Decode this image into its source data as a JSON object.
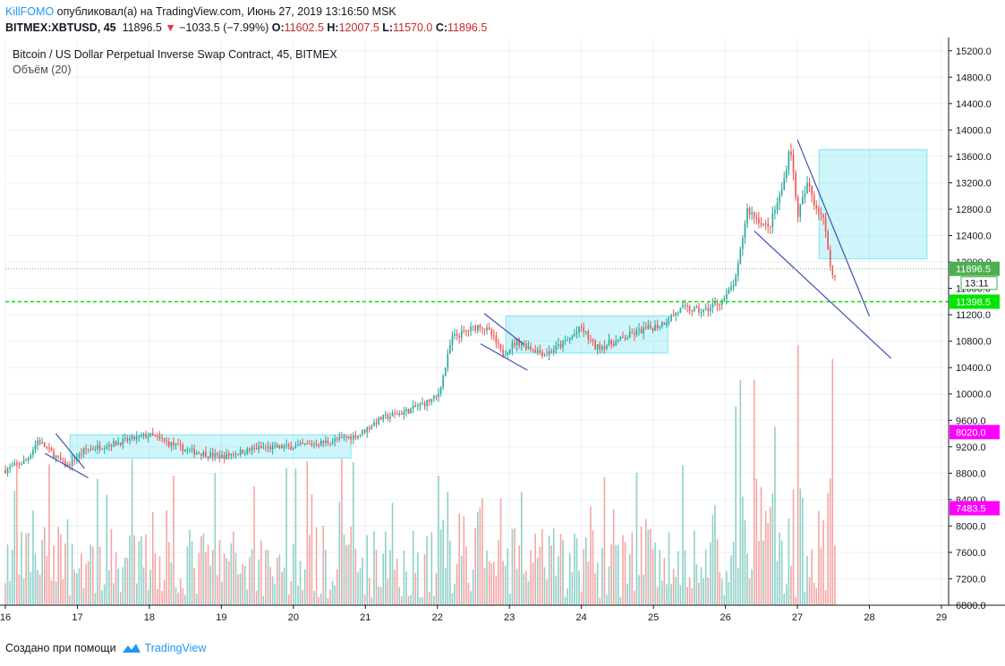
{
  "header": {
    "author": "KillFOMO",
    "published": "опубликовал(а) на TradingView.com, Июнь 27, 2019 13:16:50 MSK",
    "symbol": "BITMEX:XBTUSD, 45",
    "price": "11896.5",
    "change_arrow": "▼",
    "change": "−1033.5 (−7.99%)",
    "o_label": "O:",
    "o": "11602.5",
    "h_label": "H:",
    "h": "12007.5",
    "l_label": "L:",
    "l": "11570.0",
    "c_label": "C:",
    "c": "11896.5"
  },
  "overlay": {
    "title": "Bitcoin / US Dollar Perpetual Inverse Swap Contract, 45, BITMEX",
    "volume_label": "Объём (20)"
  },
  "footer": {
    "created_with": "Создано при помощи",
    "brand": "TradingView",
    "logo_icon": "tradingview-logo-icon"
  },
  "colors": {
    "up": "#26a69a",
    "down": "#ef5350",
    "vol_up": "#8fd1c8",
    "vol_down": "#f4a6a4",
    "box": "#7fe5f0",
    "trendline": "#3f51b5",
    "current_price_tag": "#4caf50",
    "level_tag": "#00e600",
    "volume_tag": "#ff00ff"
  },
  "chart_data": {
    "type": "candlestick",
    "price_axis": {
      "ylim": [
        6800,
        15400
      ],
      "ticks": [
        "6800.0",
        "7200.0",
        "7600.0",
        "8000.0",
        "8400.0",
        "8800.0",
        "9200.0",
        "9600.0",
        "10000.0",
        "10400.0",
        "10800.0",
        "11200.0",
        "11600.0",
        "12000.0",
        "12400.0",
        "12800.0",
        "13200.0",
        "13600.0",
        "14000.0",
        "14400.0",
        "14800.0",
        "15200.0"
      ],
      "grid": true
    },
    "time_axis": {
      "xlim": [
        16.0,
        29.1
      ],
      "tick_labels": [
        "16",
        "17",
        "18",
        "19",
        "20",
        "21",
        "22",
        "23",
        "24",
        "25",
        "26",
        "27",
        "28",
        "29"
      ]
    },
    "markers": {
      "current_price": "11896.5",
      "countdown": "13:11",
      "level": "11398.5",
      "volume_a": "8020.0",
      "volume_b": "7483.5"
    },
    "price_path": [
      [
        16.0,
        8850
      ],
      [
        16.3,
        9000
      ],
      [
        16.45,
        9300
      ],
      [
        16.6,
        9150
      ],
      [
        16.85,
        8900
      ],
      [
        17.1,
        9150
      ],
      [
        17.5,
        9250
      ],
      [
        18.0,
        9380
      ],
      [
        18.5,
        9150
      ],
      [
        19.0,
        9050
      ],
      [
        19.5,
        9180
      ],
      [
        20.0,
        9200
      ],
      [
        20.5,
        9280
      ],
      [
        20.9,
        9380
      ],
      [
        21.2,
        9620
      ],
      [
        21.6,
        9750
      ],
      [
        22.0,
        9950
      ],
      [
        22.1,
        10350
      ],
      [
        22.2,
        10850
      ],
      [
        22.4,
        10950
      ],
      [
        22.6,
        11050
      ],
      [
        22.75,
        10900
      ],
      [
        22.9,
        10600
      ],
      [
        23.1,
        10800
      ],
      [
        23.5,
        10600
      ],
      [
        23.8,
        10800
      ],
      [
        24.0,
        11000
      ],
      [
        24.2,
        10700
      ],
      [
        24.5,
        10800
      ],
      [
        24.8,
        10950
      ],
      [
        25.1,
        11050
      ],
      [
        25.4,
        11300
      ],
      [
        25.7,
        11250
      ],
      [
        26.0,
        11450
      ],
      [
        26.15,
        11750
      ],
      [
        26.3,
        12800
      ],
      [
        26.6,
        12500
      ],
      [
        26.8,
        13150
      ],
      [
        26.9,
        13800
      ],
      [
        27.0,
        12700
      ],
      [
        27.15,
        13200
      ],
      [
        27.25,
        12850
      ],
      [
        27.35,
        12700
      ],
      [
        27.5,
        11700
      ],
      [
        27.55,
        11896.5
      ]
    ],
    "boxes": [
      {
        "from": [
          16.9,
          9030
        ],
        "to": [
          20.8,
          9380
        ]
      },
      {
        "from": [
          22.95,
          10620
        ],
        "to": [
          25.2,
          11180
        ]
      },
      {
        "from": [
          27.3,
          12050
        ],
        "to": [
          28.8,
          13700
        ]
      }
    ],
    "trendlines": [
      {
        "from": [
          16.7,
          9400
        ],
        "to": [
          17.1,
          8870
        ]
      },
      {
        "from": [
          16.55,
          9100
        ],
        "to": [
          17.15,
          8730
        ]
      },
      {
        "from": [
          22.65,
          11220
        ],
        "to": [
          23.2,
          10750
        ]
      },
      {
        "from": [
          22.6,
          10760
        ],
        "to": [
          23.25,
          10360
        ]
      },
      {
        "from": [
          27.0,
          13850
        ],
        "to": [
          28.0,
          11180
        ]
      },
      {
        "from": [
          26.4,
          12470
        ],
        "to": [
          28.3,
          10540
        ]
      }
    ],
    "volume_axis": {
      "ylim": [
        6800,
        10800
      ]
    }
  }
}
